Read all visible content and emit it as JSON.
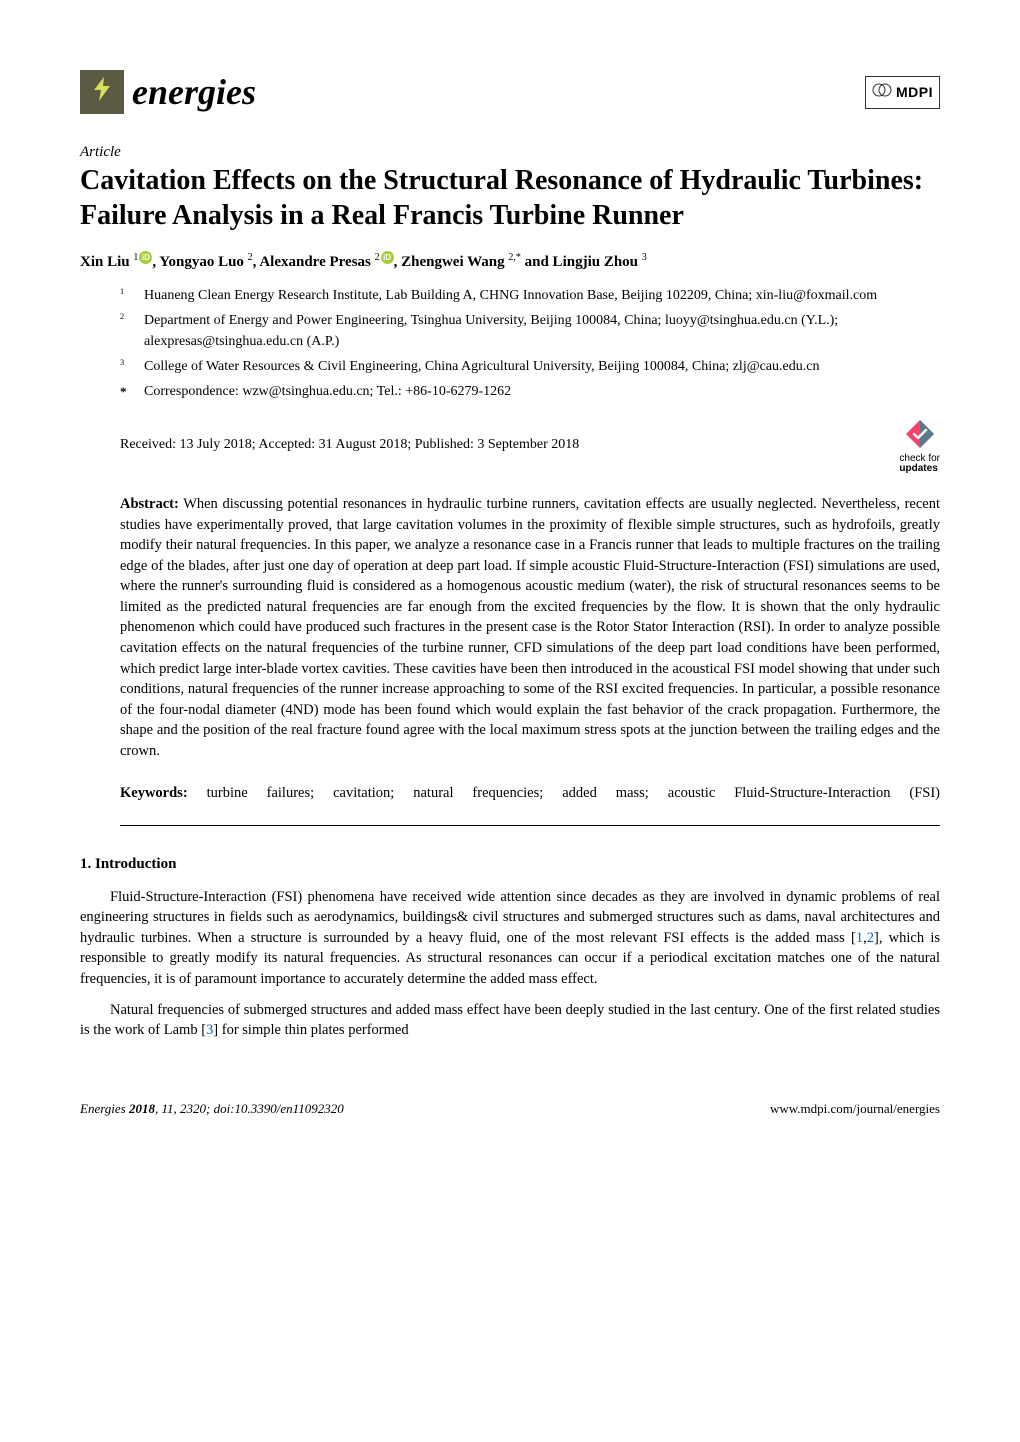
{
  "journal": {
    "name": "energies",
    "logo_bg": "#5c5a42",
    "logo_bolt_color": "#d4e157"
  },
  "publisher": {
    "name": "MDPI"
  },
  "article": {
    "type": "Article",
    "title": "Cavitation Effects on the Structural Resonance of Hydraulic Turbines: Failure Analysis in a Real Francis Turbine Runner"
  },
  "authors": {
    "list": [
      {
        "name": "Xin Liu",
        "sup": "1",
        "orcid": true
      },
      {
        "name": "Yongyao Luo",
        "sup": "2",
        "orcid": false
      },
      {
        "name": "Alexandre Presas",
        "sup": "2",
        "orcid": true
      },
      {
        "name": "Zhengwei Wang",
        "sup": "2,*",
        "orcid": false
      },
      {
        "name": "Lingjiu Zhou",
        "sup": "3",
        "orcid": false
      }
    ]
  },
  "affiliations": [
    {
      "num": "1",
      "text": "Huaneng Clean Energy Research Institute, Lab Building A, CHNG Innovation Base, Beijing 102209, China; xin-liu@foxmail.com"
    },
    {
      "num": "2",
      "text": "Department of Energy and Power Engineering, Tsinghua University, Beijing 100084, China; luoyy@tsinghua.edu.cn (Y.L.); alexpresas@tsinghua.edu.cn (A.P.)"
    },
    {
      "num": "3",
      "text": "College of Water Resources & Civil Engineering, China Agricultural University, Beijing 100084, China; zlj@cau.edu.cn"
    },
    {
      "num": "*",
      "text": "Correspondence: wzw@tsinghua.edu.cn; Tel.: +86-10-6279-1262"
    }
  ],
  "dates": {
    "received": "Received: 13 July 2018; Accepted: 31 August 2018; Published: 3 September 2018"
  },
  "check_updates": {
    "line1": "check for",
    "line2": "updates"
  },
  "abstract": {
    "label": "Abstract:",
    "text": "When discussing potential resonances in hydraulic turbine runners, cavitation effects are usually neglected. Nevertheless, recent studies have experimentally proved, that large cavitation volumes in the proximity of flexible simple structures, such as hydrofoils, greatly modify their natural frequencies. In this paper, we analyze a resonance case in a Francis runner that leads to multiple fractures on the trailing edge of the blades, after just one day of operation at deep part load. If simple acoustic Fluid-Structure-Interaction (FSI) simulations are used, where the runner's surrounding fluid is considered as a homogenous acoustic medium (water), the risk of structural resonances seems to be limited as the predicted natural frequencies are far enough from the excited frequencies by the flow. It is shown that the only hydraulic phenomenon which could have produced such fractures in the present case is the Rotor Stator Interaction (RSI). In order to analyze possible cavitation effects on the natural frequencies of the turbine runner, CFD simulations of the deep part load conditions have been performed, which predict large inter-blade vortex cavities. These cavities have been then introduced in the acoustical FSI model showing that under such conditions, natural frequencies of the runner increase approaching to some of the RSI excited frequencies. In particular, a possible resonance of the four-nodal diameter (4ND) mode has been found which would explain the fast behavior of the crack propagation. Furthermore, the shape and the position of the real fracture found agree with the local maximum stress spots at the junction between the trailing edges and the crown."
  },
  "keywords": {
    "label": "Keywords:",
    "text": "turbine failures; cavitation; natural frequencies; added mass; acoustic Fluid-Structure-Interaction (FSI)"
  },
  "sections": {
    "intro": {
      "heading": "1. Introduction",
      "p1_before_refs": "Fluid-Structure-Interaction (FSI) phenomena have received wide attention since decades as they are involved in dynamic problems of real engineering structures in fields such as aerodynamics, buildings& civil structures and submerged structures such as dams, naval architectures and hydraulic turbines. When a structure is surrounded by a heavy fluid, one of the most relevant FSI effects is the added mass [",
      "ref1": "1",
      "ref_sep": ",",
      "ref2": "2",
      "p1_after_refs": "], which is responsible to greatly modify its natural frequencies. As structural resonances can occur if a periodical excitation matches one of the natural frequencies, it is of paramount importance to accurately determine the added mass effect.",
      "p2_before_ref": "Natural frequencies of submerged structures and added mass effect have been deeply studied in the last century. One of the first related studies is the work of Lamb [",
      "ref3": "3",
      "p2_after_ref": "] for simple thin plates performed"
    }
  },
  "footer": {
    "left_journal": "Energies",
    "left_year_vol": "2018",
    "left_issue": "11",
    "left_pages": ", 2320; doi:10.3390/en11092320",
    "right": "www.mdpi.com/journal/energies"
  },
  "colors": {
    "ref_link": "#0066cc",
    "orcid_bg": "#a6ce39"
  }
}
